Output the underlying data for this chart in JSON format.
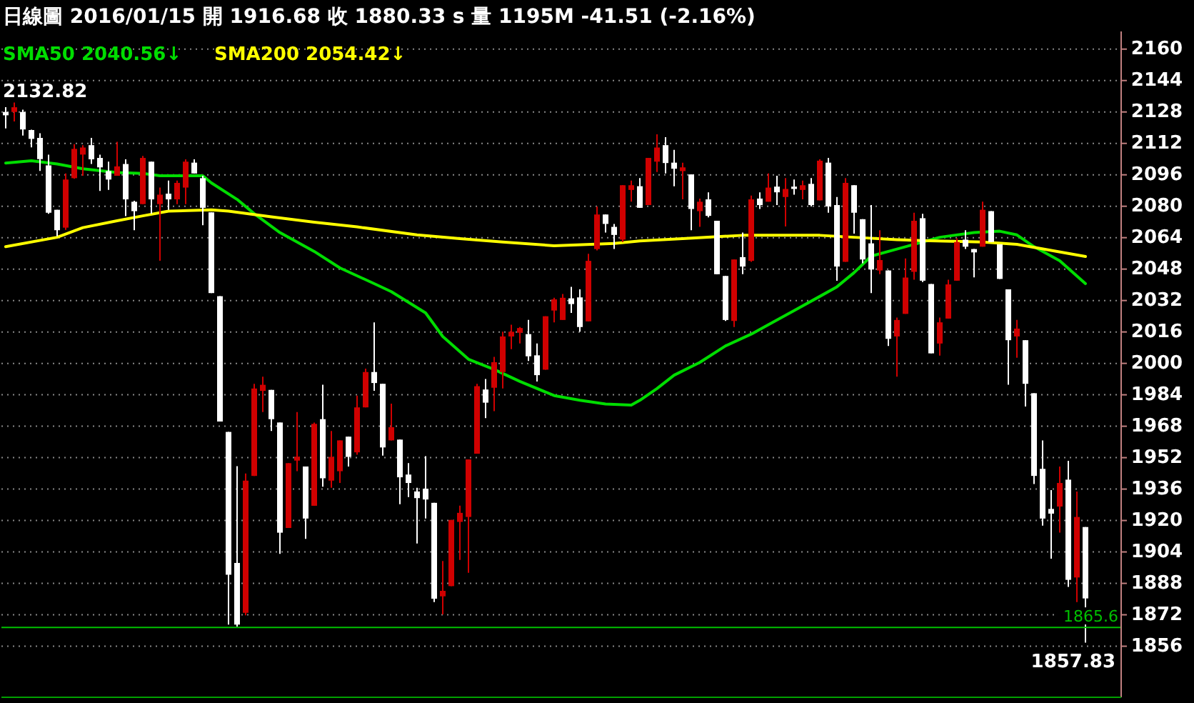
{
  "chart_data": {
    "type": "candlestick",
    "title": "日線圖 2016/01/15 開 1916.68 收 1880.33 s 量 1195M -41.51 (-2.16%)",
    "categories": [
      null,
      null,
      null,
      null,
      null,
      null,
      null,
      null,
      null,
      null,
      null,
      null,
      null,
      null,
      null,
      null,
      null,
      null,
      null,
      null,
      null,
      null,
      null,
      null,
      null,
      null,
      null,
      null,
      null,
      null,
      null,
      null,
      null,
      null,
      null,
      null,
      null,
      null,
      null,
      null,
      null,
      null,
      null,
      null,
      null,
      null,
      null,
      null,
      null,
      null,
      null,
      null,
      null,
      null,
      null,
      null,
      null,
      null,
      null,
      null,
      null,
      null,
      null,
      null,
      null,
      null,
      null,
      null,
      null,
      null,
      null,
      null,
      null,
      null,
      null,
      null,
      null,
      null,
      null,
      null,
      null,
      null,
      null,
      null,
      null,
      null,
      null,
      null,
      null,
      null,
      null,
      null,
      null,
      null,
      null,
      null,
      null,
      null,
      null,
      null,
      null,
      null,
      null,
      null,
      null,
      null,
      null,
      null,
      null,
      null,
      null,
      null,
      null,
      null,
      null,
      null,
      null,
      null,
      null,
      null,
      null,
      null,
      null,
      null,
      null,
      null,
      null
    ],
    "ohlc": [
      [
        2128,
        2130.4,
        2119.6,
        2126.3
      ],
      [
        2128,
        2132.82,
        2123.2,
        2130.4
      ],
      [
        2128,
        2129.2,
        2116,
        2119.1
      ],
      [
        2118.8,
        2119,
        2110,
        2114.3
      ],
      [
        2114.8,
        2117.2,
        2098,
        2104
      ],
      [
        2100.8,
        2106.3,
        2076.2,
        2076.7
      ],
      [
        2078.2,
        2078.2,
        2064.7,
        2067.8
      ],
      [
        2069.1,
        2096.7,
        2068,
        2093.6
      ],
      [
        2094.3,
        2111.6,
        2094,
        2109.2
      ],
      [
        2106.3,
        2111.1,
        2095.5,
        2109.9
      ],
      [
        2111.1,
        2114.8,
        2101.5,
        2103.9
      ],
      [
        2104.6,
        2106.3,
        2087.8,
        2099.8
      ],
      [
        2097.9,
        2102.7,
        2088.3,
        2093.6
      ],
      [
        2095.5,
        2112.8,
        2095.5,
        2100.3
      ],
      [
        2101.5,
        2103.9,
        2075,
        2083.5
      ],
      [
        2082.3,
        2082.8,
        2067.8,
        2077.5
      ],
      [
        2081.1,
        2105.6,
        2081.1,
        2104.6
      ],
      [
        2102.7,
        2102.7,
        2076.2,
        2083.5
      ],
      [
        2081.1,
        2089.5,
        2052.2,
        2085.9
      ],
      [
        2086.4,
        2093.1,
        2078.2,
        2083.5
      ],
      [
        2083.5,
        2093.1,
        2081.1,
        2091.9
      ],
      [
        2089.5,
        2103.9,
        2081.1,
        2102.7
      ],
      [
        2102.2,
        2103.9,
        2096.7,
        2096.7
      ],
      [
        2094.3,
        2095.5,
        2070.3,
        2079.2
      ],
      [
        2076.9,
        2076.9,
        2035.8,
        2035.8
      ],
      [
        2034.2,
        2034.2,
        1970.4,
        1970.4
      ],
      [
        1965.1,
        1965.1,
        1867,
        1892.4
      ],
      [
        1898.4,
        1947.7,
        1866,
        1867
      ],
      [
        1873,
        1943.9,
        1871.7,
        1940.3
      ],
      [
        1942.7,
        1989.6,
        1942.7,
        1987.2
      ],
      [
        1986,
        1993.2,
        1975.2,
        1989.1
      ],
      [
        1986.5,
        1986.5,
        1965.6,
        1971.6
      ],
      [
        1969.9,
        1969.9,
        1903,
        1913.8
      ],
      [
        1916.2,
        1949.2,
        1916.2,
        1949.2
      ],
      [
        1950.5,
        1975.2,
        1945.1,
        1952.5
      ],
      [
        1947.5,
        1947.5,
        1910.7,
        1921
      ],
      [
        1927.5,
        1969.9,
        1927.5,
        1969.2
      ],
      [
        1971.6,
        1989.1,
        1937.2,
        1941.5
      ],
      [
        1940.3,
        1965.6,
        1936.7,
        1952.4
      ],
      [
        1945.1,
        1960.8,
        1939.1,
        1960.8
      ],
      [
        1962.7,
        1962.7,
        1947.5,
        1952.4
      ],
      [
        1954.7,
        1983.6,
        1953.5,
        1977.6
      ],
      [
        1977.6,
        1997.3,
        1977.6,
        1995.6
      ],
      [
        1995.6,
        2020.9,
        1986,
        1990
      ],
      [
        1989.6,
        1989.6,
        1953,
        1957.2
      ],
      [
        1960.8,
        1979.5,
        1960.8,
        1967.5
      ],
      [
        1961.2,
        1961.2,
        1928.3,
        1942
      ],
      [
        1943.4,
        1949.2,
        1931.9,
        1939.1
      ],
      [
        1934.8,
        1936.7,
        1908.3,
        1931.4
      ],
      [
        1936.2,
        1952.8,
        1921,
        1930.7
      ],
      [
        1929,
        1929,
        1878.5,
        1880.2
      ],
      [
        1881.4,
        1899.4,
        1872.2,
        1884.2
      ],
      [
        1886.6,
        1920.3,
        1886.6,
        1920.3
      ],
      [
        1919.3,
        1927.6,
        1899.9,
        1923.9
      ],
      [
        1921.8,
        1951.1,
        1893.4,
        1951.1
      ],
      [
        1954,
        1989.6,
        1954,
        1988.4
      ],
      [
        1986.7,
        1992,
        1972.1,
        1980
      ],
      [
        1987.6,
        2003.3,
        1975.7,
        2000.6
      ],
      [
        1995.6,
        2016.1,
        1987.2,
        2013.7
      ],
      [
        2013.7,
        2019.7,
        2007.2,
        2016.1
      ],
      [
        2015.6,
        2018.5,
        2010.1,
        2018
      ],
      [
        2014.9,
        2022.1,
        2001.2,
        2003.6
      ],
      [
        2004.1,
        2010.1,
        1990.8,
        1994
      ],
      [
        1996.8,
        2024,
        1996.8,
        2024
      ],
      [
        2026.9,
        2033.4,
        2020.9,
        2032.6
      ],
      [
        2022.1,
        2035.3,
        2022.1,
        2033.4
      ],
      [
        2033.1,
        2039,
        2025.7,
        2030.2
      ],
      [
        2033.6,
        2037.7,
        2016.1,
        2018.5
      ],
      [
        2021.4,
        2055.8,
        2021.4,
        2052.2
      ],
      [
        2058.2,
        2079.9,
        2057.5,
        2075.8
      ],
      [
        2075.8,
        2075.8,
        2066.6,
        2071
      ],
      [
        2069.5,
        2071,
        2058.2,
        2065.4
      ],
      [
        2063,
        2090.7,
        2061.8,
        2090.7
      ],
      [
        2088.3,
        2093.1,
        2082.3,
        2090.7
      ],
      [
        2090.2,
        2094.3,
        2079.2,
        2079.2
      ],
      [
        2080.6,
        2104.6,
        2080.6,
        2104.6
      ],
      [
        2102.7,
        2116.6,
        2097.4,
        2109.9
      ],
      [
        2111.1,
        2115.2,
        2096.7,
        2102
      ],
      [
        2102.2,
        2108.7,
        2090.2,
        2099.1
      ],
      [
        2097.9,
        2102.2,
        2083.5,
        2099.8
      ],
      [
        2096.2,
        2096.2,
        2067.8,
        2078.6
      ],
      [
        2077.5,
        2083.9,
        2069.5,
        2082.3
      ],
      [
        2083.5,
        2087.1,
        2074.3,
        2075.1
      ],
      [
        2072.6,
        2072.6,
        2045.4,
        2045.4
      ],
      [
        2044.5,
        2044.5,
        2021.6,
        2022.1
      ],
      [
        2021.6,
        2052.9,
        2018.5,
        2052.9
      ],
      [
        2054.1,
        2066.6,
        2045.4,
        2049.3
      ],
      [
        2052.2,
        2085.4,
        2051.7,
        2083.5
      ],
      [
        2083.9,
        2087.1,
        2078.6,
        2080.6
      ],
      [
        2082.3,
        2096.7,
        2082.3,
        2089.5
      ],
      [
        2090,
        2095.5,
        2080.6,
        2087.1
      ],
      [
        2084.7,
        2094.3,
        2069.7,
        2088.8
      ],
      [
        2090,
        2093.6,
        2085.9,
        2088.8
      ],
      [
        2088.3,
        2093.1,
        2083.5,
        2090.7
      ],
      [
        2091.4,
        2094.3,
        2079.9,
        2080.6
      ],
      [
        2083,
        2103.9,
        2083,
        2103.2
      ],
      [
        2102.2,
        2104.6,
        2076.7,
        2079.9
      ],
      [
        2080.6,
        2084.7,
        2042.1,
        2049.3
      ],
      [
        2051.7,
        2094.3,
        2051.7,
        2091.9
      ],
      [
        2090.7,
        2090.7,
        2066.1,
        2076.7
      ],
      [
        2073.4,
        2073.4,
        2051,
        2052.9
      ],
      [
        2061.1,
        2080.6,
        2035.8,
        2047.8
      ],
      [
        2047.3,
        2067.8,
        2045.4,
        2052.6
      ],
      [
        2047.3,
        2047.3,
        2008.9,
        2012.5
      ],
      [
        2013.7,
        2023.3,
        1993.2,
        2022.1
      ],
      [
        2025.2,
        2053.4,
        2025.2,
        2043.7
      ],
      [
        2046.6,
        2076.7,
        2042.6,
        2072.6
      ],
      [
        2073.9,
        2076.2,
        2041.4,
        2042.1
      ],
      [
        2040.4,
        2040.4,
        2005.1,
        2005.1
      ],
      [
        2010.1,
        2023.3,
        2004,
        2020.9
      ],
      [
        2022.8,
        2042.6,
        2022.8,
        2040.2
      ],
      [
        2042.1,
        2063.7,
        2042.1,
        2061.8
      ],
      [
        2063,
        2067.8,
        2058.2,
        2059.4
      ],
      [
        2058.2,
        2058.2,
        2043.8,
        2056.5
      ],
      [
        2059.4,
        2082.3,
        2059.4,
        2078.2
      ],
      [
        2077.5,
        2077.5,
        2061.8,
        2061.8
      ],
      [
        2060.6,
        2060.6,
        2043,
        2043
      ],
      [
        2037.7,
        2037.7,
        1989.1,
        2011.8
      ],
      [
        2013.7,
        2022.1,
        2002.9,
        2017.7
      ],
      [
        2011.8,
        2011.8,
        1978,
        1989.6
      ],
      [
        1984.8,
        1984.8,
        1938.6,
        1942.7
      ],
      [
        1946.3,
        1960.8,
        1917.4,
        1921
      ],
      [
        1925.9,
        1935.5,
        1900.6,
        1923.5
      ],
      [
        1927.1,
        1947.5,
        1913.8,
        1939.1
      ],
      [
        1940.8,
        1950.4,
        1886.2,
        1889.8
      ],
      [
        1891,
        1934.8,
        1878.5,
        1921.8
      ],
      [
        1916.68,
        1916.68,
        1857.83,
        1880.33
      ]
    ],
    "colors": [
      "#ffffff",
      "#d00000",
      "#ffffff",
      "#ffffff",
      "#ffffff",
      "#ffffff",
      "#ffffff",
      "#d00000",
      "#d00000",
      "#d00000",
      "#ffffff",
      "#ffffff",
      "#ffffff",
      "#d00000",
      "#ffffff",
      "#ffffff",
      "#d00000",
      "#ffffff",
      "#d00000",
      "#ffffff",
      "#d00000",
      "#d00000",
      "#ffffff",
      "#ffffff",
      "#ffffff",
      "#ffffff",
      "#ffffff",
      "#ffffff",
      "#d00000",
      "#d00000",
      "#d00000",
      "#ffffff",
      "#ffffff",
      "#d00000",
      "#d00000",
      "#ffffff",
      "#d00000",
      "#ffffff",
      "#d00000",
      "#d00000",
      "#ffffff",
      "#d00000",
      "#d00000",
      "#ffffff",
      "#ffffff",
      "#d00000",
      "#ffffff",
      "#ffffff",
      "#ffffff",
      "#ffffff",
      "#ffffff",
      "#d00000",
      "#d00000",
      "#d00000",
      "#d00000",
      "#d00000",
      "#ffffff",
      "#d00000",
      "#d00000",
      "#d00000",
      "#d00000",
      "#ffffff",
      "#ffffff",
      "#d00000",
      "#d00000",
      "#d00000",
      "#ffffff",
      "#ffffff",
      "#d00000",
      "#d00000",
      "#ffffff",
      "#ffffff",
      "#d00000",
      "#d00000",
      "#ffffff",
      "#d00000",
      "#d00000",
      "#ffffff",
      "#ffffff",
      "#d00000",
      "#ffffff",
      "#d00000",
      "#ffffff",
      "#ffffff",
      "#ffffff",
      "#d00000",
      "#ffffff",
      "#d00000",
      "#ffffff",
      "#d00000",
      "#ffffff",
      "#d00000",
      "#ffffff",
      "#d00000",
      "#ffffff",
      "#d00000",
      "#ffffff",
      "#ffffff",
      "#d00000",
      "#ffffff",
      "#ffffff",
      "#ffffff",
      "#d00000",
      "#ffffff",
      "#d00000",
      "#d00000",
      "#d00000",
      "#ffffff",
      "#ffffff",
      "#d00000",
      "#d00000",
      "#d00000",
      "#ffffff",
      "#ffffff",
      "#d00000",
      "#ffffff",
      "#ffffff",
      "#ffffff",
      "#d00000",
      "#ffffff",
      "#ffffff",
      "#ffffff",
      "#ffffff",
      "#d00000",
      "#ffffff",
      "#d00000",
      "#ffffff"
    ],
    "series": [
      {
        "type": "line",
        "name": "SMA50 2040.56↓",
        "color": "#00dd00",
        "values": [
          2102,
          null,
          null,
          2103.2,
          null,
          null,
          2101.5,
          null,
          null,
          2099.1,
          null,
          null,
          null,
          2097.2,
          null,
          null,
          2096.7,
          null,
          2095.5,
          null,
          null,
          2095.5,
          null,
          2095.5,
          2091.9,
          null,
          null,
          2083.5,
          null,
          2076.2,
          null,
          null,
          2066.6,
          null,
          null,
          null,
          2057,
          null,
          null,
          2048.6,
          null,
          null,
          null,
          2040.6,
          null,
          2036.5,
          null,
          null,
          null,
          2025.7,
          null,
          2013.7,
          null,
          null,
          2002.1,
          null,
          null,
          1996.9,
          null,
          null,
          1990.8,
          null,
          null,
          null,
          1983.6,
          null,
          null,
          1981.2,
          null,
          null,
          1979.3,
          null,
          null,
          1978.8,
          1981.2,
          null,
          1987.2,
          null,
          1994,
          null,
          null,
          2000.5,
          null,
          null,
          2008.9,
          null,
          null,
          2014.9,
          null,
          2019.7,
          null,
          null,
          2026.9,
          null,
          null,
          2034.1,
          null,
          2039,
          null,
          2046.2,
          null,
          2054.6,
          null,
          null,
          2058.2,
          null,
          null,
          2061.8,
          null,
          2064.2,
          null,
          null,
          null,
          2066.6,
          null,
          null,
          2067.3,
          null,
          2065.4,
          null,
          2059.4,
          null,
          null,
          2052.2,
          null,
          null,
          2040.6
        ]
      },
      {
        "type": "line",
        "name": "SMA200 2054.42↓",
        "color": "#ffff00",
        "values": [
          2059.4,
          null,
          null,
          null,
          null,
          null,
          2064.2,
          null,
          null,
          2069.1,
          null,
          null,
          null,
          2072.6,
          null,
          null,
          2075.1,
          null,
          null,
          2077.5,
          null,
          null,
          null,
          null,
          2078.2,
          null,
          2077.5,
          null,
          null,
          null,
          null,
          2074.6,
          null,
          null,
          null,
          null,
          2071.9,
          null,
          null,
          null,
          null,
          2069.5,
          null,
          null,
          null,
          null,
          null,
          null,
          2065.4,
          null,
          null,
          null,
          null,
          2063.5,
          null,
          null,
          null,
          null,
          2061.8,
          null,
          null,
          null,
          null,
          null,
          2059.9,
          null,
          null,
          null,
          null,
          null,
          null,
          2061.1,
          null,
          null,
          2062.3,
          null,
          null,
          null,
          null,
          2063.5,
          null,
          null,
          null,
          null,
          null,
          null,
          2065.2,
          null,
          null,
          null,
          null,
          null,
          null,
          null,
          null,
          2065.2,
          null,
          null,
          null,
          2064.2,
          null,
          null,
          null,
          null,
          2063,
          null,
          null,
          2062.5,
          null,
          null,
          null,
          null,
          null,
          null,
          2061.8,
          null,
          null,
          null,
          2060.6,
          null,
          null,
          null,
          2057.5,
          null,
          null,
          null,
          2054.4
        ]
      }
    ],
    "ylim": [
      1830,
      2169
    ],
    "yticks": [
      1856,
      1872,
      1888,
      1904,
      1920,
      1936,
      1952,
      1968,
      1984,
      2000,
      2016,
      2032,
      2048,
      2064,
      2080,
      2096,
      2112,
      2128,
      2144,
      2160
    ],
    "grid": "y",
    "legend": "top left",
    "ref_lines": [
      {
        "axis": "y",
        "value": 1865.6,
        "label": "1865.6",
        "color": "#00c000"
      }
    ],
    "annotations": [
      "2132.82",
      "1857.83"
    ]
  }
}
